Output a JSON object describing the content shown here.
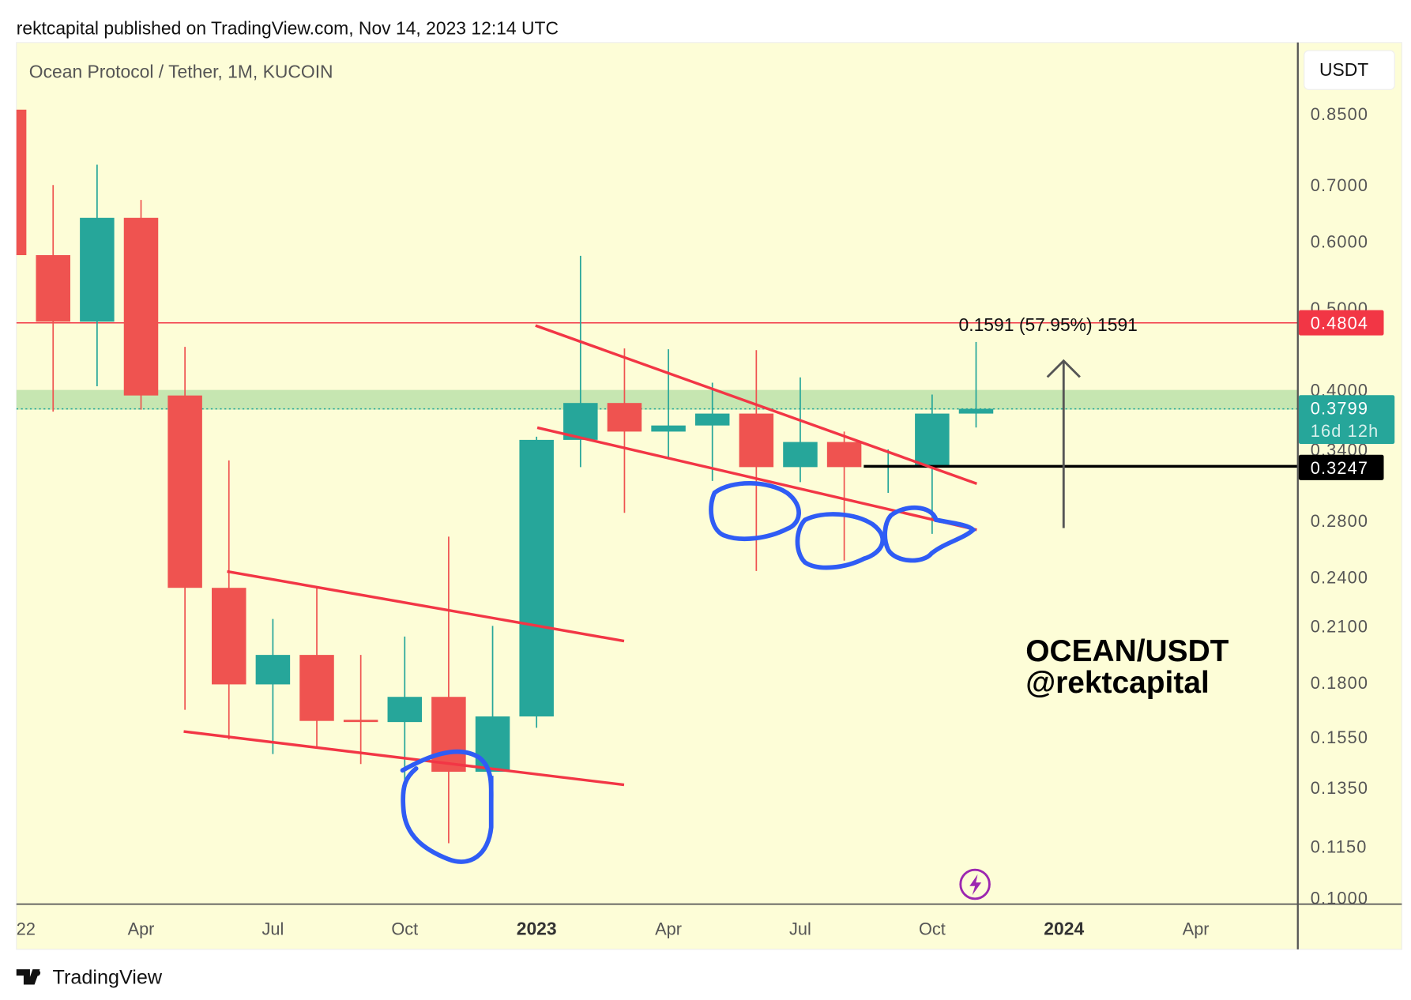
{
  "header": {
    "published": "rektcapital published on TradingView.com, Nov 14, 2023 12:14 UTC"
  },
  "chart_title": "Ocean Protocol / Tether, 1M, KUCOIN",
  "currency_button": "USDT",
  "footer": {
    "brand": "TradingView"
  },
  "colors": {
    "up": "#26a69a",
    "down": "#ef5350",
    "background": "#fdfdd7",
    "trendline": "#f23645",
    "loop": "#2f5cf5",
    "zone": "#c6e6b1"
  },
  "chart_data": {
    "type": "candlestick",
    "title": "Ocean Protocol / Tether, 1M, KUCOIN",
    "y_scale": "log",
    "ylim": [
      0.1,
      0.85
    ],
    "y_ticks": [
      "0.8500",
      "0.7000",
      "0.6000",
      "0.5000",
      "0.4000",
      "0.3400",
      "0.2800",
      "0.2400",
      "0.2100",
      "0.1800",
      "0.1550",
      "0.1350",
      "0.1150",
      "0.1000"
    ],
    "x_ticks": [
      {
        "label": "22",
        "month_index": 0.3,
        "bold": false
      },
      {
        "label": "Apr",
        "month_index": 3,
        "bold": false
      },
      {
        "label": "Jul",
        "month_index": 6,
        "bold": false
      },
      {
        "label": "Oct",
        "month_index": 9,
        "bold": false
      },
      {
        "label": "2023",
        "month_index": 12,
        "bold": true
      },
      {
        "label": "Apr",
        "month_index": 15,
        "bold": false
      },
      {
        "label": "Jul",
        "month_index": 18,
        "bold": false
      },
      {
        "label": "Oct",
        "month_index": 21,
        "bold": false
      },
      {
        "label": "2024",
        "month_index": 24,
        "bold": true
      },
      {
        "label": "Apr",
        "month_index": 27,
        "bold": false
      }
    ],
    "candles": [
      {
        "month": "2022-01",
        "o": 0.86,
        "h": 0.86,
        "l": 0.578,
        "c": 0.578
      },
      {
        "month": "2022-02",
        "o": 0.578,
        "h": 0.7,
        "l": 0.377,
        "c": 0.482
      },
      {
        "month": "2022-03",
        "o": 0.482,
        "h": 0.74,
        "l": 0.404,
        "c": 0.64
      },
      {
        "month": "2022-04",
        "o": 0.64,
        "h": 0.672,
        "l": 0.379,
        "c": 0.394
      },
      {
        "month": "2022-05",
        "o": 0.394,
        "h": 0.45,
        "l": 0.167,
        "c": 0.233
      },
      {
        "month": "2022-06",
        "o": 0.233,
        "h": 0.33,
        "l": 0.154,
        "c": 0.179
      },
      {
        "month": "2022-07",
        "o": 0.179,
        "h": 0.214,
        "l": 0.148,
        "c": 0.194
      },
      {
        "month": "2022-08",
        "o": 0.194,
        "h": 0.234,
        "l": 0.151,
        "c": 0.162
      },
      {
        "month": "2022-09",
        "o": 0.1625,
        "h": 0.194,
        "l": 0.144,
        "c": 0.1615
      },
      {
        "month": "2022-10",
        "o": 0.1615,
        "h": 0.204,
        "l": 0.138,
        "c": 0.173
      },
      {
        "month": "2022-11",
        "o": 0.173,
        "h": 0.268,
        "l": 0.116,
        "c": 0.141
      },
      {
        "month": "2022-12",
        "o": 0.141,
        "h": 0.21,
        "l": 0.141,
        "c": 0.164
      },
      {
        "month": "2023-01",
        "o": 0.164,
        "h": 0.352,
        "l": 0.159,
        "c": 0.349
      },
      {
        "month": "2023-02",
        "o": 0.349,
        "h": 0.577,
        "l": 0.324,
        "c": 0.386
      },
      {
        "month": "2023-03",
        "o": 0.386,
        "h": 0.448,
        "l": 0.286,
        "c": 0.357
      },
      {
        "month": "2023-04",
        "o": 0.357,
        "h": 0.447,
        "l": 0.333,
        "c": 0.363
      },
      {
        "month": "2023-05",
        "o": 0.363,
        "h": 0.408,
        "l": 0.312,
        "c": 0.375
      },
      {
        "month": "2023-06",
        "o": 0.375,
        "h": 0.446,
        "l": 0.244,
        "c": 0.324
      },
      {
        "month": "2023-07",
        "o": 0.324,
        "h": 0.414,
        "l": 0.311,
        "c": 0.347
      },
      {
        "month": "2023-08",
        "o": 0.347,
        "h": 0.357,
        "l": 0.251,
        "c": 0.324
      },
      {
        "month": "2023-09",
        "o": 0.3245,
        "h": 0.34,
        "l": 0.302,
        "c": 0.3255
      },
      {
        "month": "2023-10",
        "o": 0.3255,
        "h": 0.395,
        "l": 0.27,
        "c": 0.375
      },
      {
        "month": "2023-11",
        "o": 0.375,
        "h": 0.456,
        "l": 0.361,
        "c": 0.3799
      }
    ],
    "levels": {
      "resistance": "0.4804",
      "last_price": "0.3799",
      "countdown": "16d 12h",
      "support": "0.3247",
      "zone": [
        0.379,
        0.4
      ]
    },
    "annotations": {
      "measure": "0.1591 (57.95%) 1591",
      "watermark_line1": "OCEAN/USDT",
      "watermark_line2": "@rektcapital"
    }
  }
}
